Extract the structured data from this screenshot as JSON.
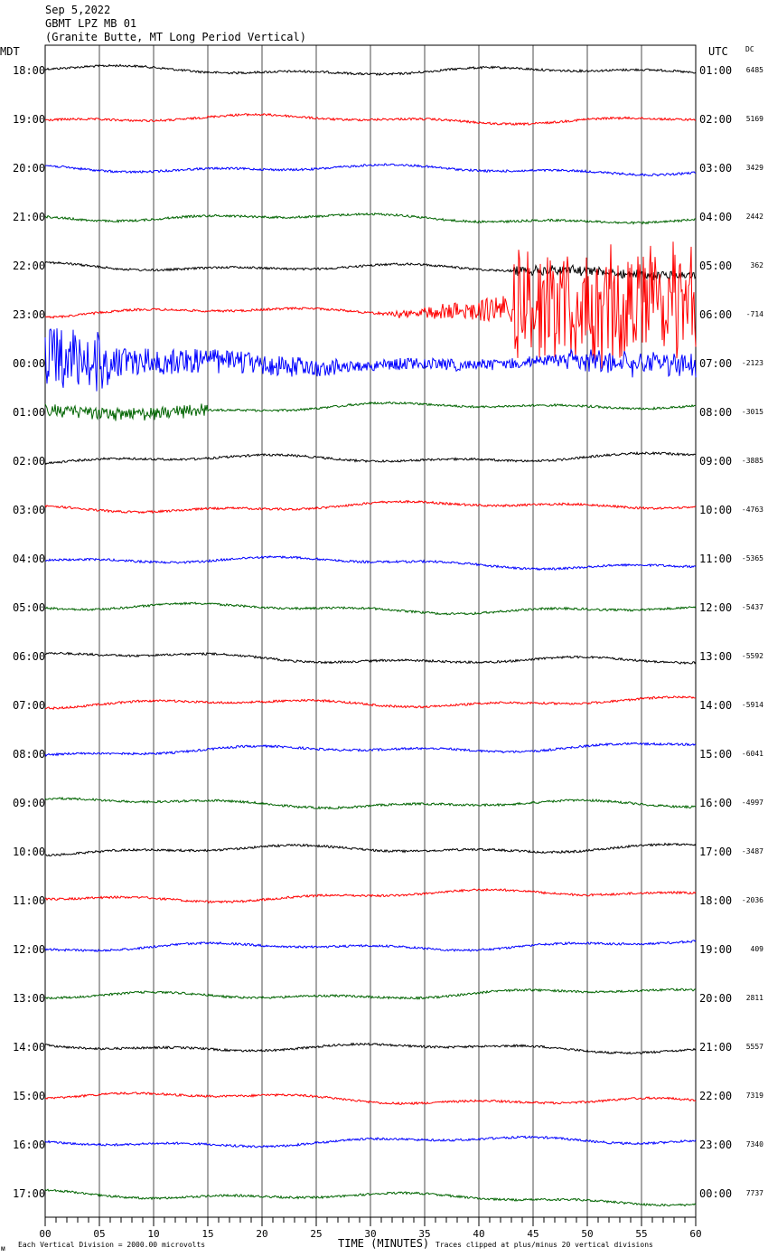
{
  "header": {
    "date": "Sep 5,2022",
    "station": "GBMT LPZ MB 01",
    "location": "(Granite Butte, MT Long Period Vertical)"
  },
  "left_axis_title": "MDT",
  "right_axis_title": "UTC",
  "dc_title": "DC",
  "footer": {
    "division_note": "Each Vertical Division = 2000.00 microvolts",
    "xlabel": "TIME (MINUTES)",
    "clip_note": "Traces clipped at plus/minus 20 vertical divisions",
    "corner_mark": "ᴍ"
  },
  "colors": {
    "black": "#000000",
    "red": "#ff0000",
    "blue": "#0000ff",
    "green": "#006400",
    "grid": "#000000"
  },
  "chart_data": {
    "type": "line",
    "title": "GBMT LPZ MB 01",
    "xlabel": "TIME (MINUTES)",
    "xlim": [
      0,
      60
    ],
    "x_ticks": [
      "00",
      "05",
      "10",
      "15",
      "20",
      "25",
      "30",
      "35",
      "40",
      "45",
      "50",
      "55",
      "60"
    ],
    "color_cycle": [
      "black",
      "red",
      "blue",
      "green"
    ],
    "rows": [
      {
        "mdt": "18:00",
        "utc": "01:00",
        "dc": "6485"
      },
      {
        "mdt": "19:00",
        "utc": "02:00",
        "dc": "5169"
      },
      {
        "mdt": "20:00",
        "utc": "03:00",
        "dc": "3429"
      },
      {
        "mdt": "21:00",
        "utc": "04:00",
        "dc": "2442"
      },
      {
        "mdt": "22:00",
        "utc": "05:00",
        "dc": "362"
      },
      {
        "mdt": "23:00",
        "utc": "06:00",
        "dc": "-714"
      },
      {
        "mdt": "00:00",
        "utc": "07:00",
        "dc": "-2123"
      },
      {
        "mdt": "01:00",
        "utc": "08:00",
        "dc": "-3015"
      },
      {
        "mdt": "02:00",
        "utc": "09:00",
        "dc": "-3885"
      },
      {
        "mdt": "03:00",
        "utc": "10:00",
        "dc": "-4763"
      },
      {
        "mdt": "04:00",
        "utc": "11:00",
        "dc": "-5365"
      },
      {
        "mdt": "05:00",
        "utc": "12:00",
        "dc": "-5437"
      },
      {
        "mdt": "06:00",
        "utc": "13:00",
        "dc": "-5592"
      },
      {
        "mdt": "07:00",
        "utc": "14:00",
        "dc": "-5914"
      },
      {
        "mdt": "08:00",
        "utc": "15:00",
        "dc": "-6041"
      },
      {
        "mdt": "09:00",
        "utc": "16:00",
        "dc": "-4997"
      },
      {
        "mdt": "10:00",
        "utc": "17:00",
        "dc": "-3487"
      },
      {
        "mdt": "11:00",
        "utc": "18:00",
        "dc": "-2036"
      },
      {
        "mdt": "12:00",
        "utc": "19:00",
        "dc": "409"
      },
      {
        "mdt": "13:00",
        "utc": "20:00",
        "dc": "2811"
      },
      {
        "mdt": "14:00",
        "utc": "21:00",
        "dc": "5557"
      },
      {
        "mdt": "15:00",
        "utc": "22:00",
        "dc": "7319"
      },
      {
        "mdt": "16:00",
        "utc": "23:00",
        "dc": "7340"
      },
      {
        "mdt": "17:00",
        "utc": "00:00",
        "dc": "7737"
      }
    ]
  }
}
